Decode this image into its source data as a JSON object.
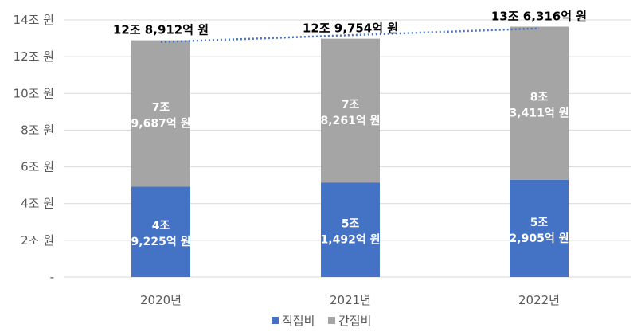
{
  "chart_data": {
    "type": "bar",
    "stacked": true,
    "categories": [
      "2020년",
      "2021년",
      "2022년"
    ],
    "y_ticks": [
      "-",
      "2조 원",
      "4조 원",
      "6조 원",
      "8조 원",
      "10조 원",
      "12조 원",
      "14조 원"
    ],
    "ylim": [
      0,
      14
    ],
    "y_unit": "조 원",
    "grid": true,
    "legend_position": "bottom",
    "series": [
      {
        "name": "직접비",
        "color": "#4472C4",
        "values": [
          4.9225,
          5.1492,
          5.2905
        ],
        "labels": [
          [
            "4조",
            "9,225억 원"
          ],
          [
            "5조",
            "1,492억 원"
          ],
          [
            "5조",
            "2,905억 원"
          ]
        ]
      },
      {
        "name": "간접비",
        "color": "#A5A5A5",
        "values": [
          7.9687,
          7.8261,
          8.3411
        ],
        "labels": [
          [
            "7조",
            "9,687억 원"
          ],
          [
            "7조",
            "8,261억 원"
          ],
          [
            "8조",
            "3,411억 원"
          ]
        ]
      }
    ],
    "totals": {
      "values": [
        12.8912,
        12.9754,
        13.6316
      ],
      "labels": [
        "12조 8,912억 원",
        "12조 9,754억 원",
        "13조 6,316억 원"
      ]
    },
    "trendline": {
      "style": "dotted",
      "color": "#4472C4"
    }
  }
}
